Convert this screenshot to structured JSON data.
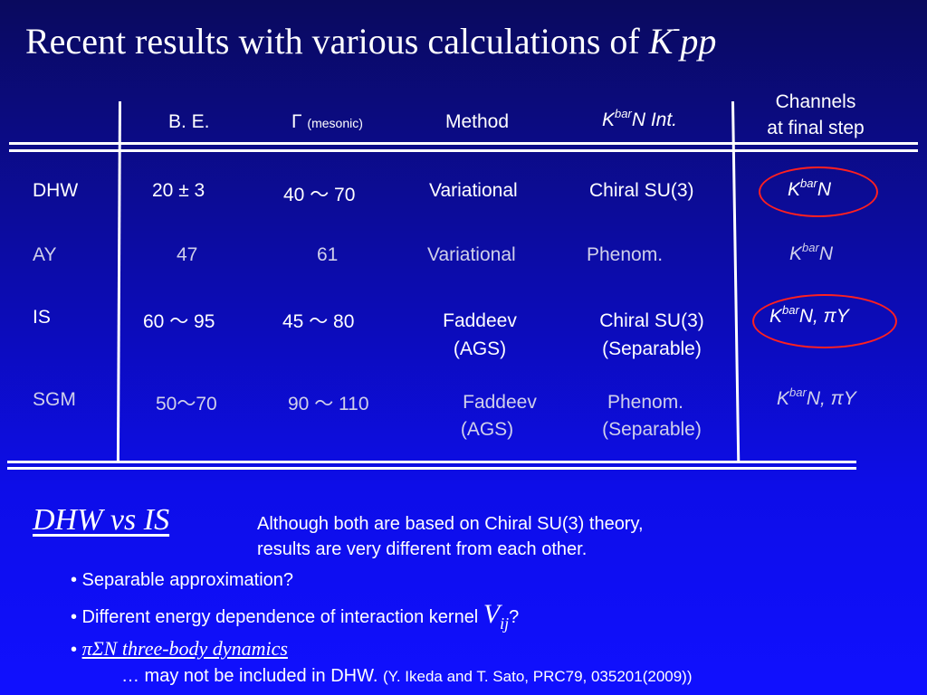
{
  "title": {
    "text": "Recent results with various calculations of ",
    "k": "K",
    "sup": "-",
    "pp": "pp"
  },
  "headers": {
    "be": "B. E.",
    "gamma": "Γ",
    "gamma_sub": "(mesonic)",
    "method": "Method",
    "int_k": "K",
    "int_bar": "bar",
    "int_rest": "N Int.",
    "channels_1": "Channels",
    "channels_2": "at final step"
  },
  "rows": [
    {
      "name": "DHW",
      "be": "20 ± 3",
      "gamma": "40 ～ 70",
      "method": [
        "Variational"
      ],
      "interaction": [
        "Chiral SU(3)"
      ],
      "channel_k": "K",
      "channel_bar": "bar",
      "channel_rest": "N",
      "highlight": "#ff2020"
    },
    {
      "name": "AY",
      "be": "47",
      "gamma": "61",
      "method": [
        "Variational"
      ],
      "interaction": [
        "Phenom."
      ],
      "channel_k": "K",
      "channel_bar": "bar",
      "channel_rest": "N"
    },
    {
      "name": "IS",
      "be": "60 ～ 95",
      "gamma": "45 ～ 80",
      "method": [
        "Faddeev",
        "(AGS)"
      ],
      "interaction": [
        "Chiral SU(3)",
        "(Separable)"
      ],
      "channel_k": "K",
      "channel_bar": "bar",
      "channel_rest": "N, πY",
      "highlight": "#ff2020"
    },
    {
      "name": "SGM",
      "be": "50～70",
      "gamma": "90 ～ 110",
      "method": [
        "Faddeev",
        "(AGS)"
      ],
      "interaction": [
        "Phenom.",
        "(Separable)"
      ],
      "channel_k": "K",
      "channel_bar": "bar",
      "channel_rest": "N, πY"
    }
  ],
  "comparison": {
    "heading": "DHW vs IS",
    "para_1": "Although both are based on Chiral SU(3) theory,",
    "para_2": "results are very different from each other.",
    "bullet_1": "• Separable approximation?",
    "bullet_2": "• Different energy dependence of interaction kernel ",
    "bullet_2_v": "V",
    "bullet_2_sub": "ij",
    "bullet_2_end": "?",
    "bullet_3_mark": "• ",
    "bullet_3": "πΣN three-body dynamics",
    "bullet_4": "… may not be included in DHW. ",
    "citation": "(Y. Ikeda and T. Sato, PRC79, 035201(2009))"
  },
  "colors": {
    "background_top": "#0a0a5e",
    "background_bottom": "#1010ff",
    "text": "#ffffff",
    "dim_text": "#d0d0ea",
    "highlight": "#ff2020"
  }
}
